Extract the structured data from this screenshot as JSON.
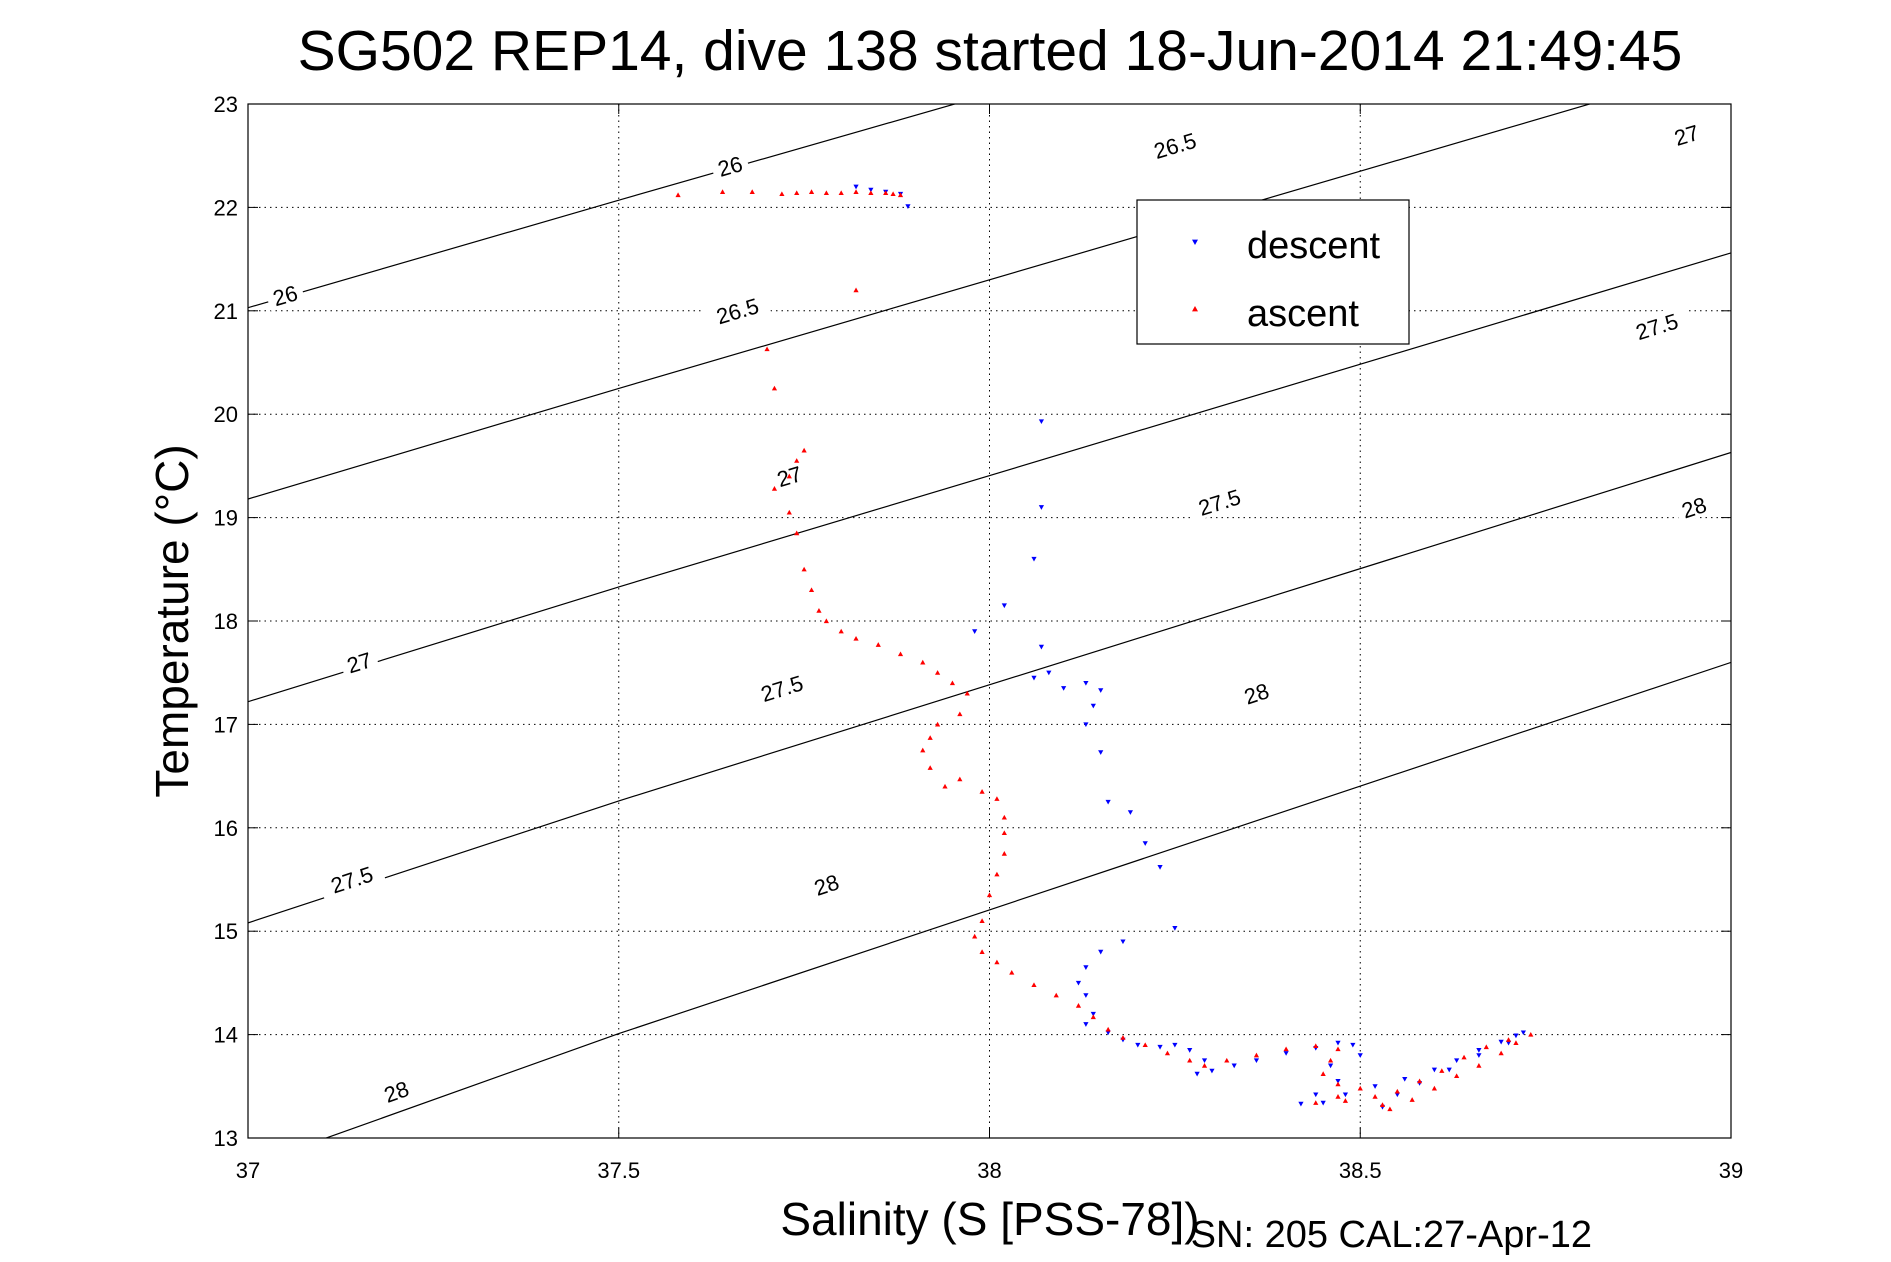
{
  "chart_data": {
    "type": "scatter",
    "title": "SG502 REP14, dive 138 started 18-Jun-2014 21:49:45",
    "xlabel": "Salinity (S [PSS-78])",
    "ylabel": "Temperature (°C)",
    "footer": "SN: 205  CAL:27-Apr-12",
    "xlim": [
      37,
      39
    ],
    "ylim": [
      13,
      23
    ],
    "xticks": [
      37,
      37.5,
      38,
      38.5,
      39
    ],
    "xtick_labels": [
      "37",
      "37.5",
      "38",
      "38.5",
      "39"
    ],
    "yticks": [
      13,
      14,
      15,
      16,
      17,
      18,
      19,
      20,
      21,
      22,
      23
    ],
    "ytick_labels": [
      "13",
      "14",
      "15",
      "16",
      "17",
      "18",
      "19",
      "20",
      "21",
      "22",
      "23"
    ],
    "grid": true,
    "legend_position": "upper-right",
    "isopycnals": [
      {
        "label": "26",
        "points": [
          [
            37,
            21.03
          ],
          [
            37.5,
            22.07
          ],
          [
            39,
            25.15
          ]
        ],
        "label_at": [
          [
            37.05,
            21.15
          ],
          [
            37.65,
            22.4
          ]
        ]
      },
      {
        "label": "26.5",
        "points": [
          [
            37,
            19.18
          ],
          [
            37.5,
            20.25
          ],
          [
            39,
            23.4
          ]
        ],
        "label_at": [
          [
            37.66,
            21.0
          ],
          [
            38.25,
            22.6
          ]
        ]
      },
      {
        "label": "27",
        "points": [
          [
            37,
            17.22
          ],
          [
            37.5,
            18.33
          ],
          [
            39,
            21.56
          ]
        ],
        "label_at": [
          [
            37.15,
            17.6
          ],
          [
            37.73,
            19.4
          ],
          [
            38.94,
            22.7
          ]
        ]
      },
      {
        "label": "27.5",
        "points": [
          [
            37,
            15.08
          ],
          [
            37.5,
            16.26
          ],
          [
            39,
            19.63
          ]
        ],
        "label_at": [
          [
            37.14,
            15.5
          ],
          [
            37.72,
            17.35
          ],
          [
            38.31,
            19.15
          ],
          [
            38.9,
            20.85
          ]
        ]
      },
      {
        "label": "28",
        "points": [
          [
            37,
            12.73
          ],
          [
            37.5,
            14.01
          ],
          [
            39,
            17.6
          ]
        ],
        "label_at": [
          [
            37.2,
            13.45
          ],
          [
            37.78,
            15.45
          ],
          [
            38.36,
            17.3
          ],
          [
            38.95,
            19.1
          ]
        ]
      }
    ],
    "series": [
      {
        "name": "descent",
        "color": "#0000ff",
        "marker": "triangle-down",
        "points": [
          [
            37.82,
            22.2
          ],
          [
            37.84,
            22.17
          ],
          [
            37.86,
            22.15
          ],
          [
            37.88,
            22.13
          ],
          [
            37.89,
            22.01
          ],
          [
            38.07,
            19.93
          ],
          [
            38.07,
            19.1
          ],
          [
            38.06,
            18.6
          ],
          [
            38.02,
            18.15
          ],
          [
            37.98,
            17.9
          ],
          [
            38.07,
            17.75
          ],
          [
            38.08,
            17.5
          ],
          [
            38.06,
            17.45
          ],
          [
            38.1,
            17.35
          ],
          [
            38.13,
            17.4
          ],
          [
            38.15,
            17.33
          ],
          [
            38.14,
            17.18
          ],
          [
            38.13,
            17.0
          ],
          [
            38.15,
            16.73
          ],
          [
            38.16,
            16.25
          ],
          [
            38.19,
            16.15
          ],
          [
            38.21,
            15.85
          ],
          [
            38.23,
            15.62
          ],
          [
            38.25,
            15.03
          ],
          [
            38.18,
            14.9
          ],
          [
            38.15,
            14.8
          ],
          [
            38.13,
            14.65
          ],
          [
            38.12,
            14.5
          ],
          [
            38.13,
            14.38
          ],
          [
            38.14,
            14.2
          ],
          [
            38.13,
            14.1
          ],
          [
            38.16,
            14.02
          ],
          [
            38.18,
            13.95
          ],
          [
            38.2,
            13.9
          ],
          [
            38.23,
            13.88
          ],
          [
            38.25,
            13.9
          ],
          [
            38.27,
            13.85
          ],
          [
            38.29,
            13.75
          ],
          [
            38.28,
            13.62
          ],
          [
            38.3,
            13.65
          ],
          [
            38.33,
            13.7
          ],
          [
            38.36,
            13.75
          ],
          [
            38.4,
            13.82
          ],
          [
            38.44,
            13.87
          ],
          [
            38.47,
            13.92
          ],
          [
            38.49,
            13.9
          ],
          [
            38.5,
            13.8
          ],
          [
            38.46,
            13.7
          ],
          [
            38.47,
            13.55
          ],
          [
            38.44,
            13.42
          ],
          [
            38.42,
            13.33
          ],
          [
            38.45,
            13.34
          ],
          [
            38.48,
            13.42
          ],
          [
            38.52,
            13.5
          ],
          [
            38.56,
            13.57
          ],
          [
            38.6,
            13.66
          ],
          [
            38.63,
            13.75
          ],
          [
            38.66,
            13.85
          ],
          [
            38.69,
            13.93
          ],
          [
            38.71,
            13.99
          ],
          [
            38.72,
            14.02
          ],
          [
            38.7,
            13.92
          ],
          [
            38.66,
            13.8
          ],
          [
            38.62,
            13.66
          ],
          [
            38.58,
            13.53
          ],
          [
            38.55,
            13.42
          ],
          [
            38.53,
            13.3
          ]
        ]
      },
      {
        "name": "ascent",
        "color": "#ff0000",
        "marker": "triangle-up",
        "points": [
          [
            37.58,
            22.12
          ],
          [
            37.64,
            22.15
          ],
          [
            37.68,
            22.15
          ],
          [
            37.72,
            22.13
          ],
          [
            37.74,
            22.14
          ],
          [
            37.76,
            22.15
          ],
          [
            37.78,
            22.14
          ],
          [
            37.8,
            22.14
          ],
          [
            37.82,
            22.15
          ],
          [
            37.84,
            22.14
          ],
          [
            37.86,
            22.14
          ],
          [
            37.87,
            22.13
          ],
          [
            37.88,
            22.12
          ],
          [
            37.82,
            21.2
          ],
          [
            37.7,
            20.63
          ],
          [
            37.71,
            20.25
          ],
          [
            37.75,
            19.65
          ],
          [
            37.74,
            19.55
          ],
          [
            37.73,
            19.4
          ],
          [
            37.71,
            19.28
          ],
          [
            37.73,
            19.05
          ],
          [
            37.74,
            18.85
          ],
          [
            37.75,
            18.5
          ],
          [
            37.76,
            18.3
          ],
          [
            37.77,
            18.1
          ],
          [
            37.78,
            18.0
          ],
          [
            37.8,
            17.9
          ],
          [
            37.82,
            17.83
          ],
          [
            37.85,
            17.77
          ],
          [
            37.88,
            17.68
          ],
          [
            37.91,
            17.6
          ],
          [
            37.93,
            17.5
          ],
          [
            37.95,
            17.4
          ],
          [
            37.97,
            17.3
          ],
          [
            37.96,
            17.1
          ],
          [
            37.93,
            17.0
          ],
          [
            37.92,
            16.87
          ],
          [
            37.91,
            16.75
          ],
          [
            37.92,
            16.58
          ],
          [
            37.94,
            16.4
          ],
          [
            37.96,
            16.47
          ],
          [
            37.99,
            16.35
          ],
          [
            38.01,
            16.28
          ],
          [
            38.02,
            16.1
          ],
          [
            38.02,
            15.95
          ],
          [
            38.02,
            15.75
          ],
          [
            38.01,
            15.55
          ],
          [
            38.0,
            15.35
          ],
          [
            37.99,
            15.1
          ],
          [
            37.98,
            14.95
          ],
          [
            37.99,
            14.8
          ],
          [
            38.01,
            14.7
          ],
          [
            38.03,
            14.6
          ],
          [
            38.06,
            14.48
          ],
          [
            38.09,
            14.38
          ],
          [
            38.12,
            14.28
          ],
          [
            38.14,
            14.17
          ],
          [
            38.16,
            14.05
          ],
          [
            38.18,
            13.97
          ],
          [
            38.21,
            13.9
          ],
          [
            38.24,
            13.82
          ],
          [
            38.27,
            13.75
          ],
          [
            38.29,
            13.7
          ],
          [
            38.32,
            13.75
          ],
          [
            38.36,
            13.8
          ],
          [
            38.4,
            13.86
          ],
          [
            38.44,
            13.89
          ],
          [
            38.47,
            13.86
          ],
          [
            38.46,
            13.75
          ],
          [
            38.45,
            13.62
          ],
          [
            38.47,
            13.52
          ],
          [
            38.5,
            13.48
          ],
          [
            38.47,
            13.4
          ],
          [
            38.44,
            13.34
          ],
          [
            38.48,
            13.36
          ],
          [
            38.52,
            13.4
          ],
          [
            38.54,
            13.28
          ],
          [
            38.57,
            13.37
          ],
          [
            38.6,
            13.48
          ],
          [
            38.63,
            13.6
          ],
          [
            38.66,
            13.7
          ],
          [
            38.69,
            13.82
          ],
          [
            38.71,
            13.92
          ],
          [
            38.73,
            14.0
          ],
          [
            38.7,
            13.95
          ],
          [
            38.67,
            13.88
          ],
          [
            38.64,
            13.78
          ],
          [
            38.61,
            13.65
          ],
          [
            38.58,
            13.55
          ],
          [
            38.55,
            13.45
          ],
          [
            38.53,
            13.32
          ]
        ]
      }
    ]
  }
}
